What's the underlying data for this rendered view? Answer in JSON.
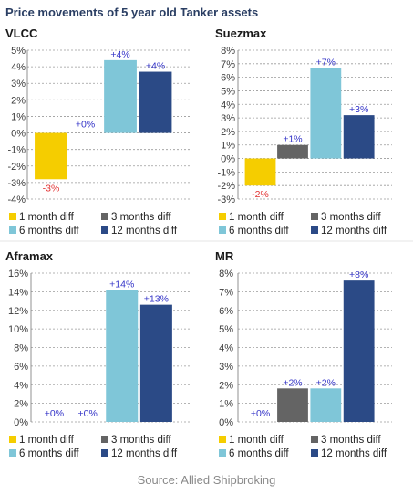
{
  "figure": {
    "title": "Price movements of 5 year old Tanker assets",
    "source": "Source: Allied Shipbroking"
  },
  "colors": {
    "1 month diff": "#f5cd00",
    "3 months diff": "#646464",
    "6 months diff": "#7fc6d8",
    "12 months diff": "#2b4a86",
    "positive_label": "#3535c8",
    "negative_label": "#e23030",
    "grid": "#9a9a9a"
  },
  "chart_data": [
    {
      "type": "bar",
      "title": "VLCC",
      "categories": [
        "1 month diff",
        "3 months diff",
        "6 months diff",
        "12 months diff"
      ],
      "values": [
        -2.8,
        0.0,
        4.4,
        3.7
      ],
      "data_labels": [
        "-3%",
        "+0%",
        "+4%",
        "+4%"
      ],
      "yticks": [
        "5%",
        "4%",
        "3%",
        "2%",
        "1%",
        "0%",
        "-1%",
        "-2%",
        "-3%",
        "-4%"
      ],
      "ylim": [
        -4,
        5
      ],
      "grid": true,
      "legend_position": "bottom"
    },
    {
      "type": "bar",
      "title": "Suezmax",
      "categories": [
        "1 month diff",
        "3 months diff",
        "6 months diff",
        "12 months diff"
      ],
      "values": [
        -2.0,
        1.0,
        6.7,
        3.2
      ],
      "data_labels": [
        "-2%",
        "+1%",
        "+7%",
        "+3%"
      ],
      "yticks": [
        "8%",
        "7%",
        "6%",
        "5%",
        "4%",
        "3%",
        "2%",
        "1%",
        "0%",
        "-1%",
        "-2%",
        "-3%"
      ],
      "ylim": [
        -3,
        8
      ],
      "grid": true,
      "legend_position": "bottom"
    },
    {
      "type": "bar",
      "title": "Aframax",
      "categories": [
        "1 month diff",
        "3 months diff",
        "6 months diff",
        "12 months diff"
      ],
      "values": [
        0.0,
        0.0,
        14.2,
        12.6
      ],
      "data_labels": [
        "+0%",
        "+0%",
        "+14%",
        "+13%"
      ],
      "yticks": [
        "16%",
        "14%",
        "12%",
        "10%",
        "8%",
        "6%",
        "4%",
        "2%",
        "0%"
      ],
      "ylim": [
        0,
        16
      ],
      "grid": true,
      "legend_position": "bottom"
    },
    {
      "type": "bar",
      "title": "MR",
      "categories": [
        "1 month diff",
        "3 months diff",
        "6 months diff",
        "12 months diff"
      ],
      "values": [
        0.0,
        1.8,
        1.8,
        7.6
      ],
      "data_labels": [
        "+0%",
        "+2%",
        "+2%",
        "+8%"
      ],
      "yticks": [
        "8%",
        "7%",
        "6%",
        "5%",
        "4%",
        "3%",
        "2%",
        "1%",
        "0%"
      ],
      "ylim": [
        0,
        8
      ],
      "grid": true,
      "legend_position": "bottom"
    }
  ]
}
